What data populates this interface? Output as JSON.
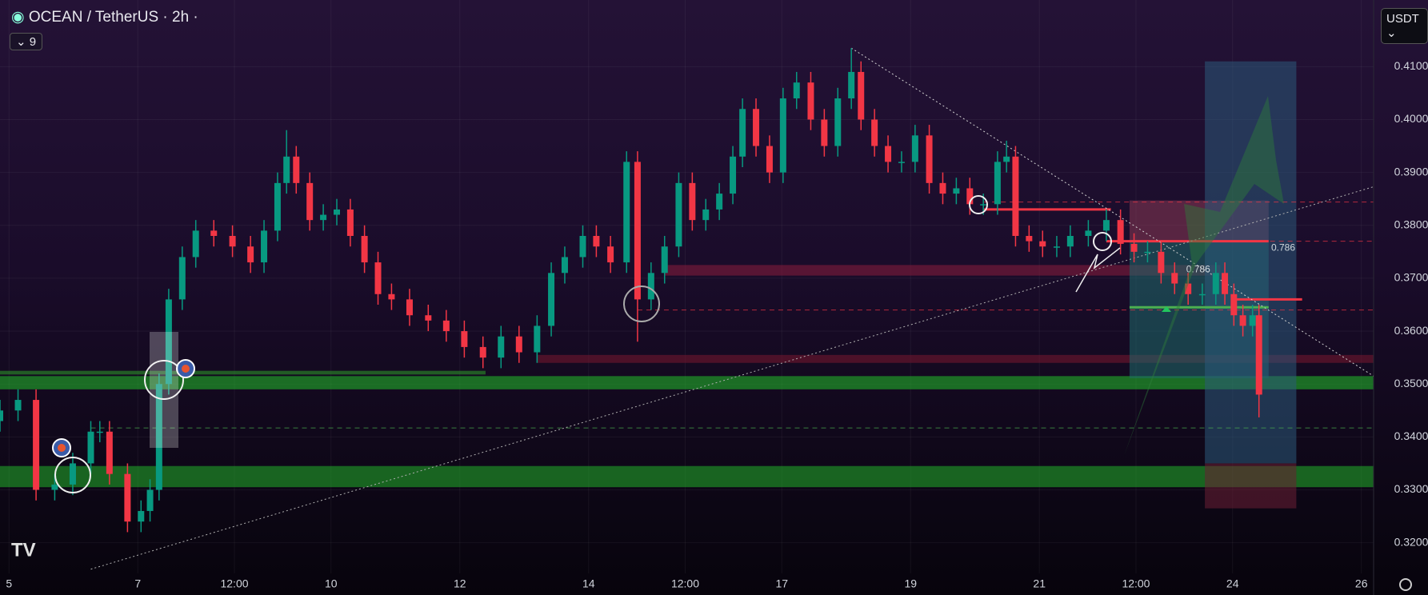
{
  "header": {
    "symbol": "OCEAN / TetherUS · 2h ·",
    "indicators_count": 9,
    "currency": "USDT"
  },
  "chart_data": {
    "type": "candlestick",
    "x": [
      4.86,
      5.14,
      5.42,
      5.71,
      5.99,
      6.27,
      6.41,
      6.56,
      6.84,
      7.05,
      7.19,
      7.33,
      7.48,
      7.69,
      7.9,
      8.18,
      8.47,
      8.75,
      8.96,
      9.17,
      9.31,
      9.46,
      9.67,
      9.88,
      10.09,
      10.3,
      10.52,
      10.73,
      10.94,
      11.22,
      11.51,
      11.79,
      12.07,
      12.36,
      12.64,
      12.92,
      13.2,
      13.42,
      13.63,
      13.91,
      14.12,
      14.34,
      14.59,
      14.76,
      14.97,
      15.18,
      15.4,
      15.61,
      15.82,
      16.03,
      16.24,
      16.39,
      16.6,
      16.81,
      17.02,
      17.23,
      17.45,
      17.66,
      17.87,
      18.08,
      18.23,
      18.44,
      18.65,
      18.86,
      19.07,
      19.29,
      19.5,
      19.71,
      19.92,
      20.13,
      20.35,
      20.49,
      20.63,
      20.84,
      21.05,
      21.27,
      21.48,
      21.76,
      22.04,
      22.26,
      22.47,
      22.68,
      22.89,
      23.1,
      23.31,
      23.53,
      23.74,
      23.88,
      24.02,
      24.16,
      24.31,
      24.41
    ],
    "open": [
      0.343,
      0.345,
      0.347,
      0.33,
      0.331,
      0.335,
      0.341,
      0.341,
      0.333,
      0.324,
      0.326,
      0.33,
      0.35,
      0.366,
      0.374,
      0.379,
      0.378,
      0.376,
      0.373,
      0.379,
      0.388,
      0.393,
      0.388,
      0.381,
      0.382,
      0.383,
      0.378,
      0.373,
      0.367,
      0.366,
      0.363,
      0.362,
      0.36,
      0.357,
      0.355,
      0.359,
      0.356,
      0.361,
      0.371,
      0.374,
      0.378,
      0.376,
      0.373,
      0.392,
      0.366,
      0.371,
      0.376,
      0.388,
      0.381,
      0.383,
      0.386,
      0.393,
      0.402,
      0.395,
      0.39,
      0.404,
      0.407,
      0.4,
      0.395,
      0.404,
      0.409,
      0.4,
      0.395,
      0.392,
      0.392,
      0.397,
      0.388,
      0.386,
      0.387,
      0.384,
      0.384,
      0.392,
      0.393,
      0.378,
      0.377,
      0.376,
      0.376,
      0.378,
      0.379,
      0.381,
      0.3765,
      0.375,
      0.375,
      0.371,
      0.369,
      0.367,
      0.367,
      0.371,
      0.367,
      0.363,
      0.361,
      0.363
    ],
    "high": [
      0.347,
      0.349,
      0.349,
      0.333,
      0.337,
      0.343,
      0.343,
      0.343,
      0.335,
      0.328,
      0.332,
      0.352,
      0.368,
      0.376,
      0.381,
      0.381,
      0.38,
      0.378,
      0.381,
      0.39,
      0.398,
      0.395,
      0.39,
      0.384,
      0.385,
      0.385,
      0.38,
      0.375,
      0.369,
      0.368,
      0.365,
      0.364,
      0.362,
      0.359,
      0.361,
      0.361,
      0.363,
      0.373,
      0.376,
      0.38,
      0.38,
      0.378,
      0.394,
      0.394,
      0.373,
      0.378,
      0.39,
      0.39,
      0.385,
      0.388,
      0.395,
      0.404,
      0.404,
      0.397,
      0.406,
      0.409,
      0.409,
      0.402,
      0.406,
      0.4135,
      0.411,
      0.402,
      0.397,
      0.394,
      0.399,
      0.399,
      0.39,
      0.389,
      0.389,
      0.386,
      0.394,
      0.396,
      0.395,
      0.38,
      0.379,
      0.378,
      0.38,
      0.381,
      0.383,
      0.383,
      0.3785,
      0.377,
      0.377,
      0.373,
      0.371,
      0.369,
      0.373,
      0.373,
      0.369,
      0.365,
      0.365,
      0.365
    ],
    "low": [
      0.341,
      0.343,
      0.328,
      0.328,
      0.329,
      0.333,
      0.339,
      0.331,
      0.322,
      0.322,
      0.324,
      0.328,
      0.348,
      0.364,
      0.372,
      0.376,
      0.374,
      0.371,
      0.371,
      0.377,
      0.386,
      0.386,
      0.379,
      0.379,
      0.38,
      0.376,
      0.371,
      0.365,
      0.364,
      0.361,
      0.36,
      0.358,
      0.355,
      0.353,
      0.353,
      0.354,
      0.354,
      0.359,
      0.369,
      0.372,
      0.374,
      0.371,
      0.371,
      0.358,
      0.364,
      0.369,
      0.374,
      0.379,
      0.379,
      0.381,
      0.384,
      0.391,
      0.393,
      0.388,
      0.388,
      0.402,
      0.398,
      0.393,
      0.393,
      0.402,
      0.398,
      0.393,
      0.39,
      0.39,
      0.39,
      0.386,
      0.384,
      0.384,
      0.382,
      0.382,
      0.382,
      0.39,
      0.376,
      0.375,
      0.374,
      0.374,
      0.374,
      0.376,
      0.377,
      0.3745,
      0.373,
      0.373,
      0.369,
      0.367,
      0.365,
      0.365,
      0.365,
      0.365,
      0.361,
      0.359,
      0.359,
      0.3437
    ],
    "close": [
      0.345,
      0.347,
      0.33,
      0.331,
      0.335,
      0.341,
      0.341,
      0.333,
      0.324,
      0.326,
      0.33,
      0.35,
      0.366,
      0.374,
      0.379,
      0.378,
      0.376,
      0.373,
      0.379,
      0.388,
      0.393,
      0.388,
      0.381,
      0.382,
      0.383,
      0.378,
      0.373,
      0.367,
      0.366,
      0.363,
      0.362,
      0.36,
      0.357,
      0.355,
      0.359,
      0.356,
      0.361,
      0.371,
      0.374,
      0.378,
      0.376,
      0.373,
      0.392,
      0.366,
      0.371,
      0.376,
      0.388,
      0.381,
      0.383,
      0.386,
      0.393,
      0.402,
      0.395,
      0.39,
      0.404,
      0.407,
      0.4,
      0.395,
      0.404,
      0.409,
      0.4,
      0.395,
      0.392,
      0.392,
      0.397,
      0.388,
      0.386,
      0.387,
      0.384,
      0.384,
      0.392,
      0.393,
      0.378,
      0.377,
      0.376,
      0.376,
      0.378,
      0.379,
      0.381,
      0.3765,
      0.375,
      0.375,
      0.371,
      0.369,
      0.367,
      0.367,
      0.371,
      0.367,
      0.363,
      0.361,
      0.363,
      0.348
    ],
    "up_color": "#089981",
    "down_color": "#f23645",
    "xlim": [
      4.86,
      26.19
    ],
    "xticks": [
      5,
      7,
      {
        "value": 8.5,
        "label": "12:00"
      },
      10,
      12,
      14,
      {
        "value": 15.5,
        "label": "12:00"
      },
      17,
      19,
      21,
      {
        "value": 22.5,
        "label": "12:00"
      },
      24,
      26
    ],
    "ylim": [
      0.3142,
      0.4226
    ],
    "yticks": [
      {
        "value": 0.41,
        "label": "0.4100"
      },
      {
        "value": 0.4,
        "label": "0.4000"
      },
      {
        "value": 0.39,
        "label": "0.3900"
      },
      {
        "value": 0.38,
        "label": "0.3800"
      },
      {
        "value": 0.37,
        "label": "0.3700"
      },
      {
        "value": 0.36,
        "label": "0.3600"
      },
      {
        "value": 0.35,
        "label": "0.3500"
      },
      {
        "value": 0.34,
        "label": "0.3400"
      },
      {
        "value": 0.33,
        "label": "0.3300"
      },
      {
        "value": 0.32,
        "label": "0.3200"
      }
    ],
    "grid": true,
    "drawings": {
      "zones": [
        {
          "x": [
            4.86,
            26.19
          ],
          "y": [
            0.3515,
            0.349
          ],
          "color": "#22c02a"
        },
        {
          "x": [
            4.86,
            26.19
          ],
          "y": [
            0.3345,
            0.3305
          ],
          "color": "#22b02a"
        },
        {
          "x": [
            4.86,
            12.4
          ],
          "y": [
            0.3525,
            0.3518
          ],
          "color": "#2e9e2a"
        },
        {
          "x": [
            15.18,
            23.81
          ],
          "y": [
            0.3725,
            0.3705
          ],
          "color": "#8c1e3c"
        },
        {
          "x": [
            13.2,
            26.19
          ],
          "y": [
            0.3555,
            0.354
          ],
          "color": "#7a1830"
        },
        {
          "x": [
            22.4,
            24.56
          ],
          "y": [
            0.3847,
            0.377
          ],
          "color": "#8a3a55"
        },
        {
          "x": [
            22.4,
            24.56
          ],
          "y": [
            0.377,
            0.3511
          ],
          "color": "#1f6b6b"
        },
        {
          "x": [
            23.57,
            24.99
          ],
          "y": [
            0.411,
            0.335
          ],
          "color": "#2b5a7a"
        },
        {
          "x": [
            23.57,
            24.99
          ],
          "y": [
            0.335,
            0.3265
          ],
          "color": "#6b1f35"
        }
      ],
      "levels": [
        {
          "x": [
            20.13,
            22.11
          ],
          "y": 0.383,
          "color": "#f23645",
          "dash": false
        },
        {
          "x": [
            22.04,
            24.56
          ],
          "y": 0.377,
          "color": "#f23645",
          "dash": false
        },
        {
          "x": [
            24.02,
            25.08
          ],
          "y": 0.366,
          "color": "#f23645",
          "dash": false
        },
        {
          "x": [
            20.13,
            26.19
          ],
          "y": 0.3844,
          "color": "#f23645",
          "dash": true
        },
        {
          "x": [
            22.26,
            26.19
          ],
          "y": 0.377,
          "color": "#f23645",
          "dash": true
        },
        {
          "x": [
            14.76,
            26.19
          ],
          "y": 0.364,
          "color": "#f23645",
          "dash": true
        },
        {
          "x": [
            6.27,
            26.19
          ],
          "y": 0.3417,
          "color": "#4caf50",
          "dash": true
        },
        {
          "x": [
            22.4,
            24.56
          ],
          "y": 0.3645,
          "color": "#4caf50",
          "dash": false
        }
      ],
      "trendlines": [
        {
          "x": [
            18.08,
            26.19
          ],
          "y": [
            0.4135,
            0.3515
          ],
          "color": "#d0d0d0"
        },
        {
          "x": [
            6.27,
            26.19
          ],
          "y": [
            0.315,
            0.3873
          ],
          "color": "#b0b0b0"
        }
      ],
      "labels": [
        {
          "text": "0.786",
          "x": 23.28,
          "y": 0.3716
        },
        {
          "text": "0.786",
          "x": 24.6,
          "y": 0.3757
        }
      ]
    }
  }
}
